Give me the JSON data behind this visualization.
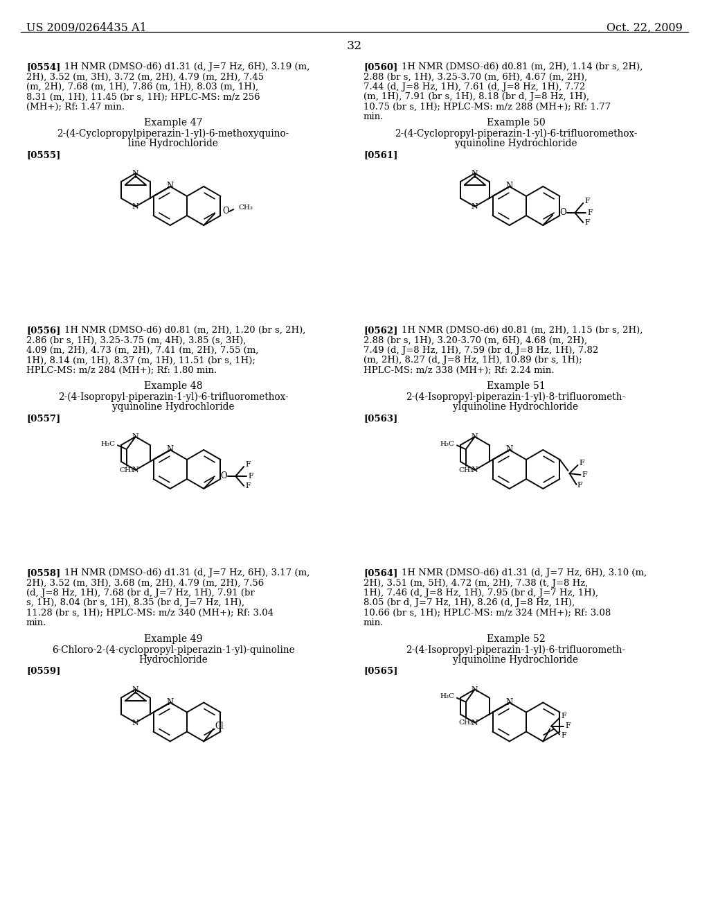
{
  "bg": "#ffffff",
  "header_left": "US 2009/0264435 A1",
  "header_right": "Oct. 22, 2009",
  "page_num": "32",
  "blocks": [
    {
      "tag": "[0554]",
      "nmr": "1H NMR (DMSO-d6) d1.31 (d, J=7 Hz, 6H), 3.19 (m, 2H), 3.52 (m, 3H), 3.72 (m, 2H), 4.79 (m, 2H), 7.45 (m, 2H), 7.68 (m, 1H), 7.86 (m, 1H), 8.03 (m, 1H), 8.31 (m, 1H), 11.45 (br s, 1H); HPLC-MS: m/z 256 (MH+); Rf: 1.47 min.",
      "ex_num": "Example 47",
      "ex_name": "2-(4-Cyclopropylpiperazin-1-yl)-6-methoxyquino-\nline Hydrochloride",
      "struct_tag": "[0555]",
      "col": "left"
    },
    {
      "tag": "[0560]",
      "nmr": "1H NMR (DMSO-d6) d0.81 (m, 2H), 1.14 (br s, 2H), 2.88 (br s, 1H), 3.25-3.70 (m, 6H), 4.67 (m, 2H), 7.44 (d, J=8 Hz, 1H), 7.61 (d, J=8 Hz, 1H), 7.72 (m, 1H), 7.91 (br s, 1H), 8.18 (br d, J=8 Hz, 1H), 10.75 (br s, 1H); HPLC-MS: m/z 288 (MH+); Rf: 1.77 min.",
      "ex_num": "Example 50",
      "ex_name": "2-(4-Cyclopropyl-piperazin-1-yl)-6-trifluoromethox-\nyquinoline Hydrochloride",
      "struct_tag": "[0561]",
      "col": "right"
    },
    {
      "tag": "[0556]",
      "nmr": "1H NMR (DMSO-d6) d0.81 (m, 2H), 1.20 (br s, 2H), 2.86 (br s, 1H), 3.25-3.75 (m, 4H), 3.85 (s, 3H), 4.09 (m, 2H), 4.73 (m, 2H), 7.41 (m, 2H), 7.55 (m, 1H), 8.14 (m, 1H), 8.37 (m, 1H), 11.51 (br s, 1H); HPLC-MS: m/z 284 (MH+); Rf: 1.80 min.",
      "ex_num": "Example 48",
      "ex_name": "2-(4-Isopropyl-piperazin-1-yl)-6-trifluoromethox-\nyquinoline Hydrochloride",
      "struct_tag": "[0557]",
      "col": "left"
    },
    {
      "tag": "[0562]",
      "nmr": "1H NMR (DMSO-d6) d0.81 (m, 2H), 1.15 (br s, 2H), 2.88 (br s, 1H), 3.20-3.70 (m, 6H), 4.68 (m, 2H), 7.49 (d, J=8 Hz, 1H), 7.59 (br d, J=8 Hz, 1H), 7.82 (m, 2H), 8.27 (d, J=8 Hz, 1H), 10.89 (br s, 1H); HPLC-MS: m/z 338 (MH+); Rf: 2.24 min.",
      "ex_num": "Example 51",
      "ex_name": "2-(4-Isopropyl-piperazin-1-yl)-8-trifluorometh-\nylquinoline Hydrochloride",
      "struct_tag": "[0563]",
      "col": "right"
    },
    {
      "tag": "[0558]",
      "nmr": "1H NMR (DMSO-d6) d1.31 (d, J=7 Hz, 6H), 3.17 (m, 2H), 3.52 (m, 3H), 3.68 (m, 2H), 4.79 (m, 2H), 7.56 (d, J=8 Hz, 1H), 7.68 (br d, J=7 Hz, 1H), 7.91 (br s, 1H), 8.04 (br s, 1H), 8.35 (br d, J=7 Hz, 1H), 11.28 (br s, 1H); HPLC-MS: m/z 340 (MH+); Rf: 3.04 min.",
      "ex_num": "Example 49",
      "ex_name": "6-Chloro-2-(4-cyclopropyl-piperazin-1-yl)-quinoline\nHydrochloride",
      "struct_tag": "[0559]",
      "col": "left"
    },
    {
      "tag": "[0564]",
      "nmr": "1H NMR (DMSO-d6) d1.31 (d, J=7 Hz, 6H), 3.10 (m, 2H), 3.51 (m, 5H), 4.72 (m, 2H), 7.38 (t, J=8 Hz, 1H), 7.46 (d, J=8 Hz, 1H), 7.95 (br d, J=7 Hz, 1H), 8.05 (br d, J=7 Hz, 1H), 8.26 (d, J=8 Hz, 1H), 10.66 (br s, 1H); HPLC-MS: m/z 324 (MH+); Rf: 3.08 min.",
      "ex_num": "Example 52",
      "ex_name": "2-(4-Isopropyl-piperazin-1-yl)-6-trifluorometh-\nylquinoline Hydrochloride",
      "struct_tag": "[0565]",
      "col": "right"
    }
  ]
}
